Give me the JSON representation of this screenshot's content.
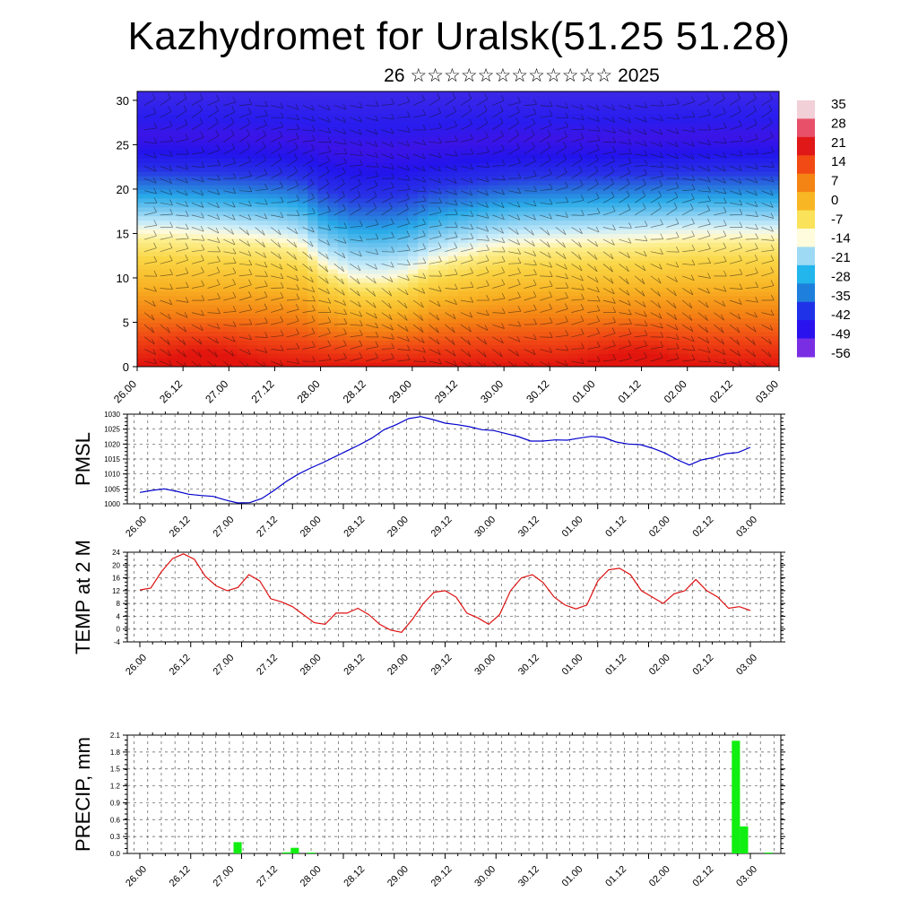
{
  "title": "Kazhydromet for Uralsk(51.25 51.28)",
  "subtitle": "26 ☆☆☆☆☆☆☆☆☆☆☆☆ 2025",
  "time_labels": [
    "26.00",
    "26.12",
    "27.00",
    "27.12",
    "28.00",
    "28.12",
    "29.00",
    "29.12",
    "30.00",
    "30.12",
    "01.00",
    "01.12",
    "02.00",
    "02.12",
    "03.00"
  ],
  "chart_data": [
    {
      "type": "heatmap",
      "name": "cross-section",
      "y_ticks": [
        0,
        5,
        10,
        15,
        20,
        25,
        30
      ],
      "ylim": [
        0,
        31
      ],
      "colorbar_labels": [
        "35",
        "28",
        "21",
        "14",
        "7",
        "0",
        "-7",
        "-14",
        "-21",
        "-28",
        "-35",
        "-42",
        "-49",
        "-56"
      ],
      "colorbar_colors": [
        "#f2d0d8",
        "#e8506a",
        "#e01818",
        "#f24a14",
        "#f48414",
        "#f8b624",
        "#fae25a",
        "#fefcdc",
        "#9fdaf4",
        "#22b6ec",
        "#1e80dc",
        "#2032e8",
        "#2a12ee",
        "#7a2ee4"
      ],
      "note_layers": {
        "surface_x_hot": [
          0.1,
          0.78
        ],
        "freezing_level_profile": [
          15.3,
          15.3,
          15.1,
          15.0,
          14.8,
          14.5,
          14.0,
          11.5,
          10.2,
          10.0,
          10.5,
          12.0,
          12.8,
          13.5,
          14.0,
          14.2,
          14.3,
          14.4,
          14.5,
          14.6,
          14.8,
          15.0,
          15.0,
          15.0,
          15.0
        ]
      }
    },
    {
      "type": "line",
      "ylabel": "PMSL",
      "ylim": [
        1000,
        1030
      ],
      "y_ticks": [
        1000,
        1005,
        1010,
        1015,
        1020,
        1025,
        1030
      ],
      "color": "#0000cc",
      "values": [
        1003.8,
        1004.5,
        1005.0,
        1004.2,
        1003.2,
        1002.8,
        1002.5,
        1001.3,
        1000.3,
        1000.4,
        1001.8,
        1004.5,
        1007.5,
        1010.0,
        1012.0,
        1013.8,
        1015.8,
        1017.8,
        1019.8,
        1022.0,
        1024.8,
        1026.5,
        1028.5,
        1029.2,
        1028.2,
        1027.0,
        1026.5,
        1025.8,
        1024.8,
        1024.5,
        1023.5,
        1022.5,
        1021.0,
        1021.0,
        1021.4,
        1021.3,
        1022.0,
        1022.6,
        1022.2,
        1020.7,
        1020.0,
        1019.8,
        1018.6,
        1017.0,
        1014.8,
        1013.0,
        1014.7,
        1015.5,
        1016.8,
        1017.2,
        1018.9
      ]
    },
    {
      "type": "line",
      "ylabel": "TEMP at 2 M",
      "ylim": [
        -4,
        24
      ],
      "y_ticks": [
        -4,
        0,
        4,
        8,
        12,
        16,
        20,
        24
      ],
      "color": "#dd1111",
      "values": [
        12.2,
        12.8,
        18.0,
        22.0,
        23.5,
        21.8,
        16.5,
        13.5,
        12.0,
        13.0,
        17.0,
        15.0,
        9.5,
        8.5,
        7.0,
        4.5,
        2.0,
        1.5,
        5.0,
        5.0,
        6.5,
        4.5,
        1.5,
        -0.3,
        -1.0,
        3.0,
        8.0,
        11.5,
        12.0,
        10.0,
        5.0,
        3.5,
        1.5,
        4.5,
        12.0,
        16.0,
        17.0,
        14.5,
        10.0,
        7.5,
        6.3,
        7.5,
        15.0,
        18.5,
        19.0,
        17.0,
        12.0,
        10.0,
        8.0,
        11.0,
        12.0,
        15.5,
        12.0,
        10.0,
        6.5,
        7.0,
        5.8
      ]
    },
    {
      "type": "bar",
      "ylabel": "PRECIP, mm",
      "ylim": [
        0,
        2.1
      ],
      "y_ticks": [
        "0.0",
        "0.3",
        "0.6",
        "0.9",
        "1.2",
        "1.5",
        "1.8",
        "2.1"
      ],
      "color": "#11ee11",
      "values": [
        0,
        0,
        0,
        0,
        0,
        0,
        0,
        0,
        0,
        0,
        0,
        0,
        0,
        0.2,
        0,
        0,
        0,
        0,
        0,
        0.02,
        0.1,
        0,
        0.01,
        0,
        0,
        0,
        0,
        0,
        0,
        0,
        0,
        0,
        0,
        0,
        0,
        0,
        0,
        0,
        0,
        0,
        0,
        0,
        0,
        0,
        0,
        0,
        0,
        0,
        0,
        0,
        0,
        0,
        0,
        0,
        0,
        0,
        0,
        0,
        0,
        0,
        0,
        0,
        0,
        0,
        0,
        0,
        0,
        0,
        0,
        0,
        0,
        0,
        0,
        0,
        2.0,
        0.48,
        0,
        0,
        0.01,
        0
      ]
    }
  ]
}
